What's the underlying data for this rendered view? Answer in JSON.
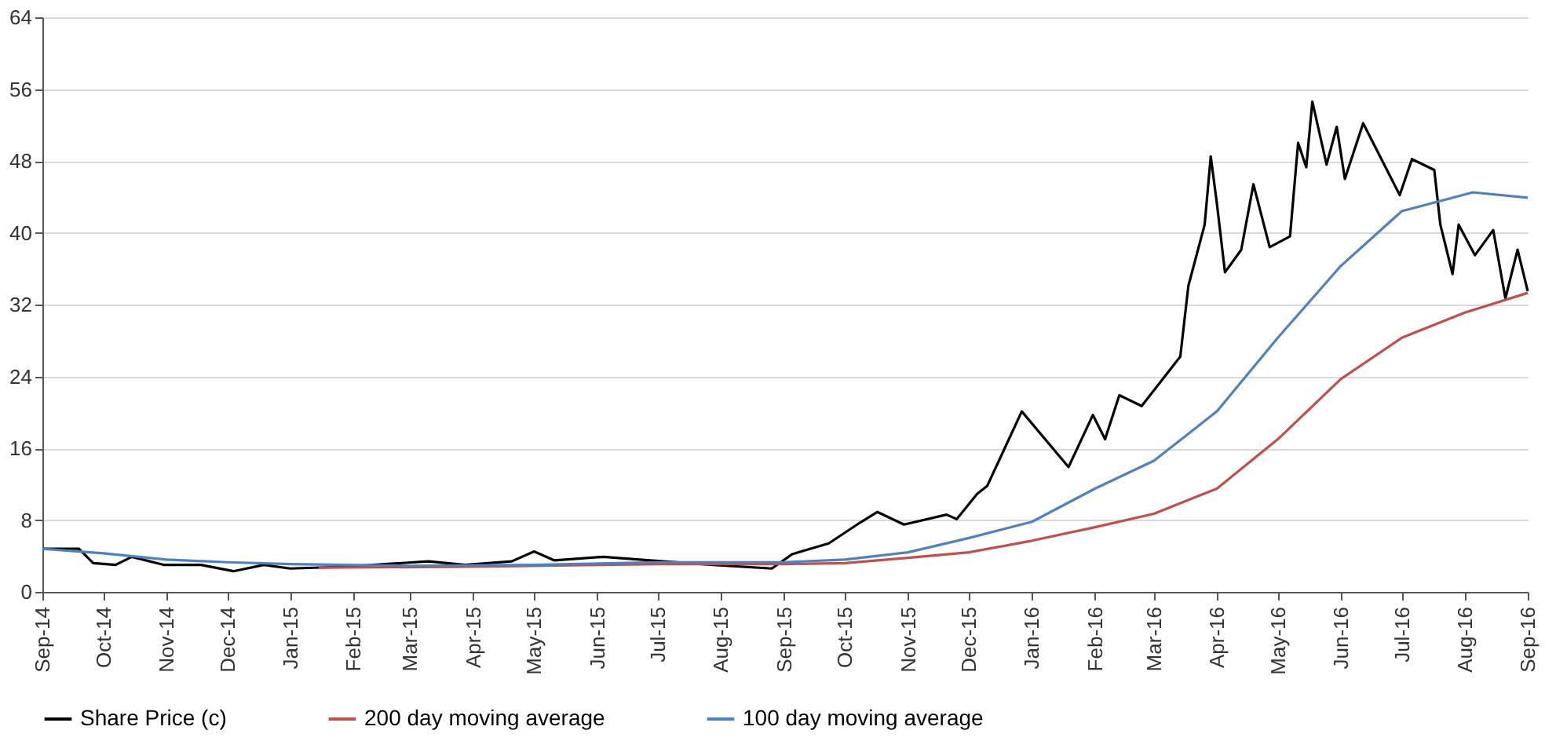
{
  "chart_data": {
    "type": "line",
    "xlim": [
      "2014-09-01",
      "2016-09-01"
    ],
    "ylim": [
      0,
      64
    ],
    "yticks": [
      0,
      8,
      16,
      24,
      32,
      40,
      48,
      56,
      64
    ],
    "xticks": [
      {
        "value": "2014-09-01",
        "label": "Sep-14"
      },
      {
        "value": "2014-10-01",
        "label": "Oct-14"
      },
      {
        "value": "2014-11-01",
        "label": "Nov-14"
      },
      {
        "value": "2014-12-01",
        "label": "Dec-14"
      },
      {
        "value": "2015-01-01",
        "label": "Jan-15"
      },
      {
        "value": "2015-02-01",
        "label": "Feb-15"
      },
      {
        "value": "2015-03-01",
        "label": "Mar-15"
      },
      {
        "value": "2015-04-01",
        "label": "Apr-15"
      },
      {
        "value": "2015-05-01",
        "label": "May-15"
      },
      {
        "value": "2015-06-01",
        "label": "Jun-15"
      },
      {
        "value": "2015-07-01",
        "label": "Jul-15"
      },
      {
        "value": "2015-08-01",
        "label": "Aug-15"
      },
      {
        "value": "2015-09-01",
        "label": "Sep-15"
      },
      {
        "value": "2015-10-01",
        "label": "Oct-15"
      },
      {
        "value": "2015-11-01",
        "label": "Nov-15"
      },
      {
        "value": "2015-12-01",
        "label": "Dec-15"
      },
      {
        "value": "2016-01-01",
        "label": "Jan-16"
      },
      {
        "value": "2016-02-01",
        "label": "Feb-16"
      },
      {
        "value": "2016-03-01",
        "label": "Mar-16"
      },
      {
        "value": "2016-04-01",
        "label": "Apr-16"
      },
      {
        "value": "2016-05-01",
        "label": "May-16"
      },
      {
        "value": "2016-06-01",
        "label": "Jun-16"
      },
      {
        "value": "2016-07-01",
        "label": "Jul-16"
      },
      {
        "value": "2016-08-01",
        "label": "Aug-16"
      },
      {
        "value": "2016-09-01",
        "label": "Sep-16"
      }
    ],
    "grid": "y",
    "legend": "bottom",
    "marker": "none",
    "line_style": "solid",
    "series": [
      {
        "name": "Share Price (c)",
        "color": "#000000",
        "x": [
          "2014-09-01",
          "2014-09-19",
          "2014-09-26",
          "2014-10-07",
          "2014-10-15",
          "2014-10-31",
          "2014-11-18",
          "2014-12-04",
          "2014-12-19",
          "2015-01-01",
          "2015-01-27",
          "2015-03-10",
          "2015-03-28",
          "2015-04-20",
          "2015-05-01",
          "2015-05-11",
          "2015-06-04",
          "2015-06-27",
          "2015-07-28",
          "2015-08-26",
          "2015-09-05",
          "2015-09-23",
          "2015-10-09",
          "2015-10-17",
          "2015-10-30",
          "2015-11-20",
          "2015-11-25",
          "2015-12-05",
          "2015-12-10",
          "2015-12-27",
          "2016-01-19",
          "2016-01-31",
          "2016-02-06",
          "2016-02-13",
          "2016-02-24",
          "2016-03-14",
          "2016-03-18",
          "2016-03-26",
          "2016-03-29",
          "2016-04-01",
          "2016-04-05",
          "2016-04-13",
          "2016-04-19",
          "2016-04-27",
          "2016-05-07",
          "2016-05-11",
          "2016-05-15",
          "2016-05-18",
          "2016-05-25",
          "2016-05-30",
          "2016-06-03",
          "2016-06-12",
          "2016-06-21",
          "2016-06-30",
          "2016-07-06",
          "2016-07-17",
          "2016-07-20",
          "2016-07-26",
          "2016-07-29",
          "2016-08-06",
          "2016-08-15",
          "2016-08-21",
          "2016-08-27",
          "2016-09-01"
        ],
        "values": [
          4.8,
          4.8,
          3.2,
          3.0,
          3.9,
          3.0,
          3.0,
          2.3,
          3.0,
          2.6,
          2.8,
          3.4,
          3.0,
          3.4,
          4.5,
          3.5,
          3.9,
          3.5,
          3.0,
          2.6,
          4.2,
          5.4,
          7.8,
          8.9,
          7.5,
          8.6,
          8.1,
          10.9,
          11.8,
          20.1,
          13.9,
          19.7,
          17.0,
          21.9,
          20.7,
          26.2,
          34.1,
          40.9,
          48.5,
          43.3,
          35.6,
          38.1,
          45.4,
          38.4,
          39.6,
          50.0,
          47.3,
          54.6,
          47.6,
          51.8,
          46.0,
          52.2,
          48.2,
          44.2,
          48.2,
          47.0,
          40.9,
          35.4,
          40.9,
          37.5,
          40.3,
          32.7,
          38.1,
          33.5
        ]
      },
      {
        "name": "200 day moving average",
        "color": "#c0504d",
        "x": [
          "2015-01-15",
          "2015-04-01",
          "2015-07-01",
          "2015-09-01",
          "2015-10-01",
          "2015-11-01",
          "2015-12-01",
          "2016-01-01",
          "2016-02-01",
          "2016-03-01",
          "2016-04-01",
          "2016-05-01",
          "2016-06-01",
          "2016-07-01",
          "2016-08-01",
          "2016-09-01"
        ],
        "values": [
          2.7,
          2.8,
          3.1,
          3.1,
          3.2,
          3.8,
          4.4,
          5.7,
          7.2,
          8.7,
          11.5,
          17.0,
          23.7,
          28.3,
          31.1,
          33.3
        ]
      },
      {
        "name": "100 day moving average",
        "color": "#4f81bd",
        "x": [
          "2014-09-01",
          "2014-10-01",
          "2014-11-01",
          "2014-12-01",
          "2015-01-01",
          "2015-03-01",
          "2015-05-01",
          "2015-07-01",
          "2015-09-01",
          "2015-10-01",
          "2015-11-01",
          "2015-12-01",
          "2016-01-01",
          "2016-02-01",
          "2016-03-01",
          "2016-04-01",
          "2016-05-01",
          "2016-06-01",
          "2016-07-01",
          "2016-08-05",
          "2016-09-01"
        ],
        "values": [
          4.8,
          4.3,
          3.6,
          3.3,
          3.1,
          2.9,
          3.0,
          3.3,
          3.3,
          3.6,
          4.4,
          6.0,
          7.8,
          11.5,
          14.6,
          20.1,
          28.3,
          36.3,
          42.4,
          44.5,
          43.9
        ]
      }
    ]
  }
}
